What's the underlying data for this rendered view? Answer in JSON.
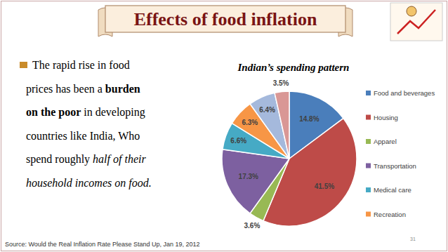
{
  "header": {
    "title": "Effects of food inflation"
  },
  "bullet": {
    "lines": [
      [
        {
          "text": "The rapid rise in food",
          "style": "normal"
        }
      ],
      [
        {
          "text": "prices has been a ",
          "style": "normal"
        },
        {
          "text": "burden",
          "style": "bold"
        }
      ],
      [
        {
          "text": "on the poor",
          "style": "bold"
        },
        {
          "text": " in developing",
          "style": "normal"
        }
      ],
      [
        {
          "text": "countries like India, Who",
          "style": "normal"
        }
      ],
      [
        {
          "text": "spend roughly ",
          "style": "normal"
        },
        {
          "text": "half of their",
          "style": "italic"
        }
      ],
      [
        {
          "text": "household incomes on food.",
          "style": "italic"
        }
      ]
    ]
  },
  "source": "Source: Would the Real Inflation Rate Please Stand Up, Jan 19, 2012",
  "slide_number": "31",
  "chart_data": {
    "type": "pie",
    "title": "Indian’s spending pattern",
    "categories": [
      "Food and beverages",
      "Housing",
      "Apparel",
      "Transportation",
      "Medical care",
      "Recreation",
      null,
      null
    ],
    "values": [
      14.8,
      41.5,
      3.6,
      17.3,
      6.6,
      6.3,
      6.4,
      3.5
    ],
    "value_labels": [
      "14.8%",
      "41.5%",
      "3.6%",
      "17.3%",
      "6.6%",
      "6.3%",
      "6.4%",
      "3.5%"
    ],
    "colors": [
      "#4a7ebb",
      "#be4b48",
      "#98b954",
      "#7d60a0",
      "#46aac5",
      "#f79646",
      "#a5b9dc",
      "#d99795"
    ],
    "data_labels": true,
    "legend": "right"
  }
}
